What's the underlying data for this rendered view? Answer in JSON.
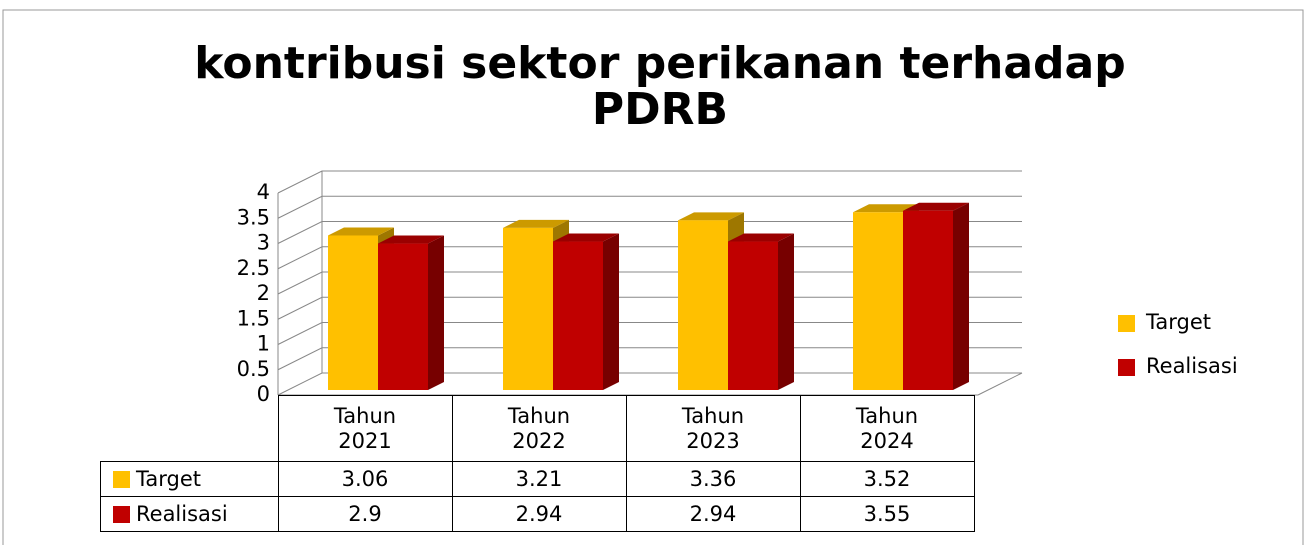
{
  "chart_data": {
    "type": "bar3d",
    "title": "kontribusi sektor perikanan terhadap PDRB",
    "categories": [
      "Tahun 2021",
      "Tahun 2022",
      "Tahun 2023",
      "Tahun 2024"
    ],
    "series": [
      {
        "name": "Target",
        "color": "#ffc000",
        "values": [
          3.06,
          3.21,
          3.36,
          3.52
        ]
      },
      {
        "name": "Realisasi",
        "color": "#c00000",
        "values": [
          2.9,
          2.94,
          2.94,
          3.55
        ]
      }
    ],
    "ylim": [
      0,
      4
    ],
    "yticks": [
      0,
      0.5,
      1,
      1.5,
      2,
      2.5,
      3,
      3.5,
      4
    ],
    "grid": true,
    "legend": "right",
    "data_table": true
  }
}
